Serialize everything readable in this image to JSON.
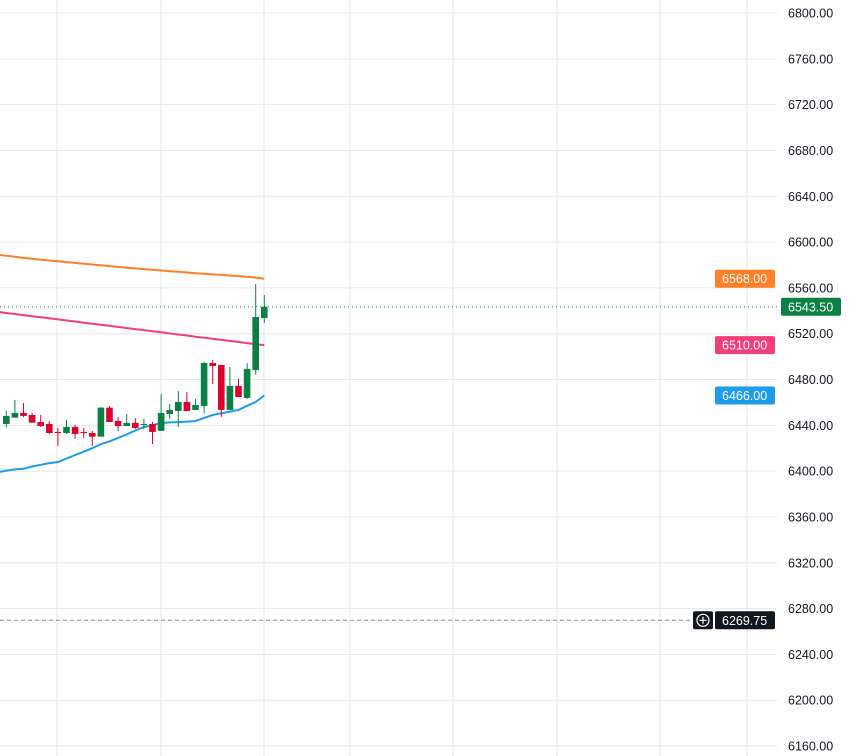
{
  "chart_data": {
    "type": "candlestick",
    "title": "",
    "xlabel": "",
    "ylabel": "",
    "ylim": [
      6160,
      6800
    ],
    "y_ticks": [
      "6800.00",
      "6760.00",
      "6720.00",
      "6680.00",
      "6640.00",
      "6600.00",
      "6560.00",
      "6520.00",
      "6480.00",
      "6440.00",
      "6400.00",
      "6360.00",
      "6320.00",
      "6280.00",
      "6240.00",
      "6200.00",
      "6160.00"
    ],
    "grid": true,
    "colors": {
      "up": "#089981",
      "up_body": "#0b8043",
      "down": "#e0002b",
      "grid": "#e6e6e6"
    },
    "candles": [
      {
        "o": 6441.2,
        "h": 6452.8,
        "l": 6438.0,
        "c": 6448.2
      },
      {
        "o": 6446.7,
        "h": 6462.1,
        "l": 6446.7,
        "c": 6450.8
      },
      {
        "o": 6450.8,
        "h": 6459.5,
        "l": 6447.3,
        "c": 6448.2
      },
      {
        "o": 6449.0,
        "h": 6450.8,
        "l": 6442.3,
        "c": 6442.3
      },
      {
        "o": 6442.9,
        "h": 6449.0,
        "l": 6438.6,
        "c": 6439.4
      },
      {
        "o": 6441.2,
        "h": 6443.8,
        "l": 6432.5,
        "c": 6433.3
      },
      {
        "o": 6434.2,
        "h": 6437.7,
        "l": 6422.0,
        "c": 6433.6
      },
      {
        "o": 6433.3,
        "h": 6444.7,
        "l": 6432.5,
        "c": 6438.6
      },
      {
        "o": 6438.6,
        "h": 6440.3,
        "l": 6428.1,
        "c": 6432.5
      },
      {
        "o": 6434.2,
        "h": 6437.7,
        "l": 6429.0,
        "c": 6433.6
      },
      {
        "o": 6433.3,
        "h": 6435.1,
        "l": 6422.0,
        "c": 6430.1
      },
      {
        "o": 6430.1,
        "h": 6456.0,
        "l": 6430.1,
        "c": 6455.4
      },
      {
        "o": 6455.4,
        "h": 6456.9,
        "l": 6442.9,
        "c": 6442.9
      },
      {
        "o": 6443.8,
        "h": 6447.3,
        "l": 6435.1,
        "c": 6439.4
      },
      {
        "o": 6439.4,
        "h": 6449.9,
        "l": 6439.4,
        "c": 6442.1
      },
      {
        "o": 6442.1,
        "h": 6446.4,
        "l": 6436.8,
        "c": 6437.7
      },
      {
        "o": 6440.3,
        "h": 6445.6,
        "l": 6436.8,
        "c": 6441.2
      },
      {
        "o": 6441.2,
        "h": 6442.9,
        "l": 6423.7,
        "c": 6434.2
      },
      {
        "o": 6435.1,
        "h": 6467.4,
        "l": 6435.1,
        "c": 6450.8
      },
      {
        "o": 6449.9,
        "h": 6458.6,
        "l": 6445.6,
        "c": 6453.4
      },
      {
        "o": 6452.5,
        "h": 6470.0,
        "l": 6438.6,
        "c": 6460.4
      },
      {
        "o": 6460.4,
        "h": 6469.1,
        "l": 6452.5,
        "c": 6452.5
      },
      {
        "o": 6453.4,
        "h": 6463.0,
        "l": 6453.4,
        "c": 6457.8
      },
      {
        "o": 6456.9,
        "h": 6495.3,
        "l": 6450.8,
        "c": 6494.4
      },
      {
        "o": 6494.4,
        "h": 6497.1,
        "l": 6476.1,
        "c": 6491.8
      },
      {
        "o": 6492.7,
        "h": 6492.7,
        "l": 6447.3,
        "c": 6453.4
      },
      {
        "o": 6453.4,
        "h": 6490.9,
        "l": 6453.4,
        "c": 6474.4
      },
      {
        "o": 6474.4,
        "h": 6480.5,
        "l": 6464.7,
        "c": 6464.7
      },
      {
        "o": 6463.9,
        "h": 6494.4,
        "l": 6462.9,
        "c": 6489.2
      },
      {
        "o": 6488.3,
        "h": 6563.4,
        "l": 6484.0,
        "c": 6534.6
      },
      {
        "o": 6533.7,
        "h": 6553.8,
        "l": 6529.4,
        "c": 6543.5
      }
    ],
    "series": [
      {
        "color": "#ff7f27",
        "type": "line",
        "values": [
          6589.0,
          6588.0,
          6587.1,
          6586.2,
          6585.4,
          6584.6,
          6583.9,
          6583.2,
          6582.5,
          6581.8,
          6581.1,
          6580.4,
          6579.7,
          6579.0,
          6578.3,
          6577.6,
          6577.0,
          6576.4,
          6575.8,
          6575.2,
          6574.6,
          6574.0,
          6573.4,
          6572.8,
          6572.3,
          6571.8,
          6571.3,
          6570.8,
          6570.3,
          6569.7,
          6569.0,
          6568.0
        ],
        "last_label": "6568.00"
      },
      {
        "color": "#f23f7a",
        "type": "line",
        "values": [
          6539.0,
          6538.1,
          6537.2,
          6536.2,
          6535.3,
          6534.3,
          6533.4,
          6532.5,
          6531.5,
          6530.6,
          6529.6,
          6528.7,
          6527.8,
          6526.8,
          6525.9,
          6524.9,
          6524.0,
          6523.1,
          6522.1,
          6521.2,
          6520.2,
          6519.3,
          6518.4,
          6517.4,
          6516.5,
          6515.5,
          6514.6,
          6513.7,
          6512.7,
          6511.8,
          6510.8,
          6510.0
        ],
        "last_label": "6510.00"
      },
      {
        "color": "#1e9bea",
        "type": "line",
        "values": [
          6399.0,
          6400.5,
          6401.5,
          6402.0,
          6404.0,
          6405.5,
          6407.0,
          6408.0,
          6411.0,
          6414.0,
          6417.0,
          6420.0,
          6423.5,
          6426.0,
          6429.0,
          6432.0,
          6435.5,
          6438.5,
          6440.0,
          6442.0,
          6442.5,
          6442.8,
          6443.2,
          6443.8,
          6446.5,
          6449.0,
          6450.5,
          6452.0,
          6453.5,
          6457.0,
          6460.4,
          6466.0
        ],
        "last_label": "6466.00"
      }
    ],
    "last_price": {
      "value": 6543.5,
      "label": "6543.50",
      "color": "#0b8043",
      "line": "dotted"
    },
    "alert_line": {
      "value": 6269.75,
      "label": "6269.75",
      "color": "#131722",
      "line": "dashed",
      "icon": "plus-circle-icon"
    }
  }
}
